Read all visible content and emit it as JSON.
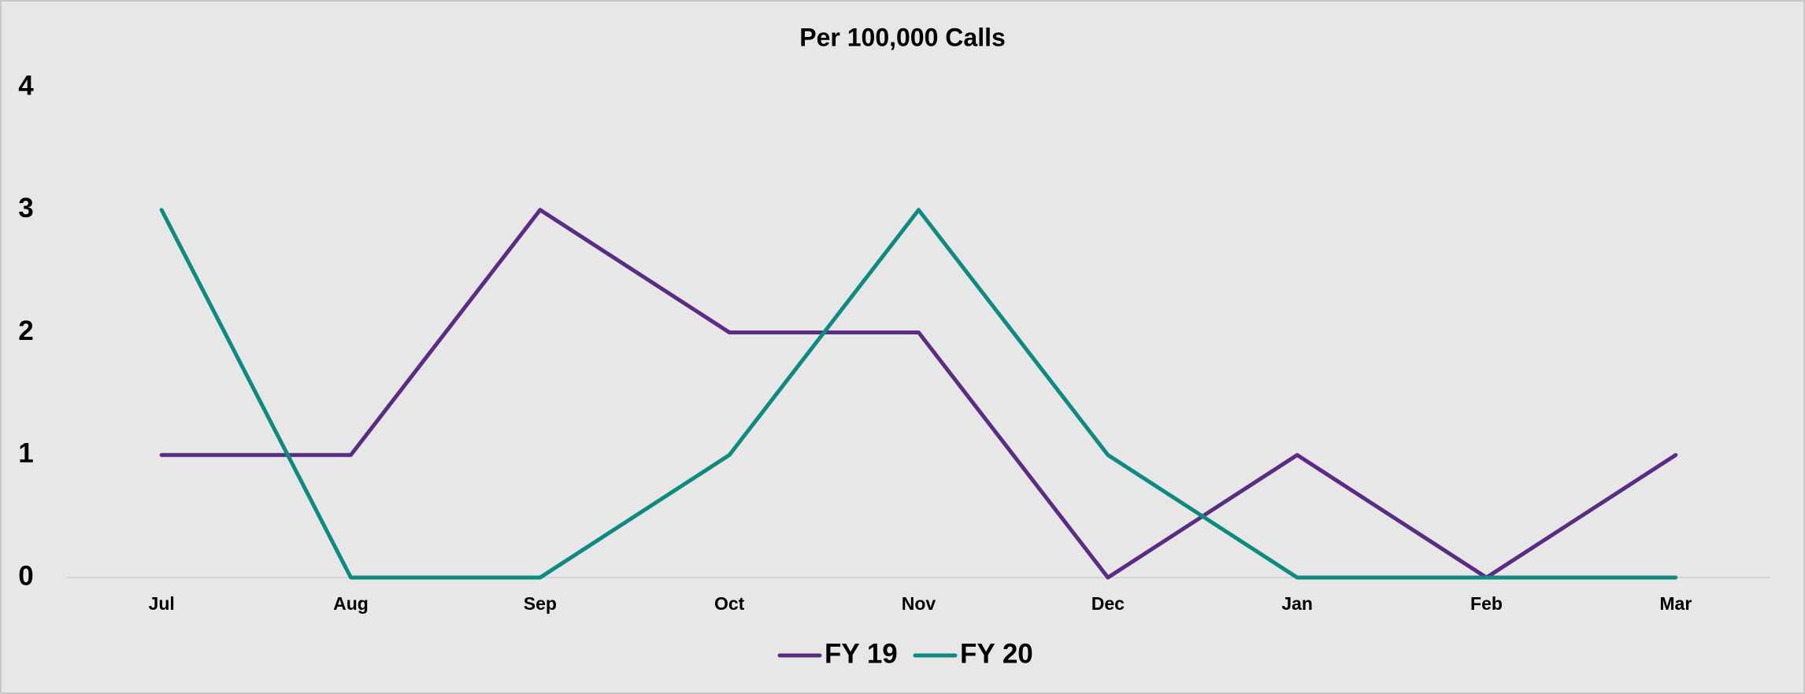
{
  "chart_data": {
    "type": "line",
    "title": "Per 100,000 Calls",
    "categories": [
      "Jul",
      "Aug",
      "Sep",
      "Oct",
      "Nov",
      "Dec",
      "Jan",
      "Feb",
      "Mar"
    ],
    "series": [
      {
        "name": "FY 19",
        "color": "#5b2c83",
        "values": [
          1,
          1,
          3,
          2,
          2,
          0,
          1,
          0,
          1
        ]
      },
      {
        "name": "FY 20",
        "color": "#0e8a80",
        "values": [
          3,
          0,
          0,
          1,
          3,
          1,
          0,
          0,
          0
        ]
      }
    ],
    "ylim": [
      0,
      4
    ],
    "yticks": [
      0,
      1,
      2,
      3,
      4
    ],
    "grid": false,
    "legend": "bottom"
  }
}
